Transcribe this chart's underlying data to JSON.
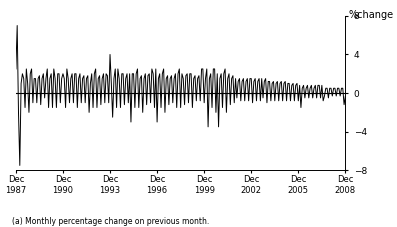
{
  "title": "",
  "ylabel": "%change",
  "ylabel_position": "right",
  "footnote": "(a) Monthly percentage change on previous month.",
  "ylim": [
    -8,
    8
  ],
  "yticks": [
    -8,
    -4,
    0,
    4,
    8
  ],
  "xtick_labels": [
    "Dec\n1987",
    "Dec\n1990",
    "Dec\n1993",
    "Dec\n1996",
    "Dec\n1999",
    "Dec\n2002",
    "Dec\n2005",
    "Dec\n2008"
  ],
  "xtick_positions": [
    0,
    36,
    72,
    108,
    144,
    180,
    216,
    252
  ],
  "line_color": "#000000",
  "line_width": 0.8,
  "background_color": "#ffffff",
  "zero_line_color": "#000000",
  "values": [
    2.5,
    7.0,
    -2.0,
    -7.5,
    1.0,
    2.0,
    1.5,
    -1.5,
    2.5,
    1.0,
    -2.0,
    2.0,
    2.5,
    -1.0,
    1.5,
    1.5,
    -1.0,
    1.5,
    1.8,
    -1.2,
    1.5,
    2.0,
    -0.5,
    1.5,
    2.5,
    -1.5,
    1.5,
    2.0,
    -1.5,
    2.5,
    1.5,
    -1.5,
    2.0,
    2.0,
    -1.0,
    1.5,
    2.0,
    1.5,
    -1.5,
    2.5,
    1.5,
    -1.0,
    1.5,
    2.0,
    -1.0,
    2.0,
    2.0,
    -1.5,
    1.5,
    2.0,
    -1.0,
    1.5,
    1.8,
    -1.0,
    1.5,
    1.8,
    -2.0,
    1.0,
    2.0,
    -1.5,
    2.0,
    2.5,
    -1.5,
    1.5,
    1.8,
    -1.2,
    1.5,
    2.0,
    -1.0,
    2.0,
    1.8,
    -1.0,
    4.0,
    1.0,
    -2.5,
    1.5,
    2.5,
    -1.5,
    2.5,
    1.5,
    -1.5,
    2.0,
    2.0,
    -1.2,
    1.5,
    2.0,
    -1.0,
    2.0,
    -3.0,
    2.0,
    2.0,
    -1.5,
    2.0,
    2.5,
    -1.5,
    1.5,
    1.8,
    -2.0,
    1.5,
    2.0,
    -1.2,
    1.8,
    2.0,
    -1.0,
    2.5,
    2.0,
    -1.5,
    2.5,
    -3.0,
    1.5,
    2.0,
    -1.5,
    2.0,
    2.5,
    -2.0,
    1.5,
    1.8,
    -1.2,
    1.5,
    1.8,
    -1.0,
    1.5,
    2.0,
    -1.5,
    2.0,
    2.5,
    -1.5,
    2.0,
    1.5,
    -1.2,
    1.8,
    2.0,
    -1.0,
    2.0,
    2.0,
    -1.5,
    1.5,
    1.8,
    -0.8,
    1.5,
    1.8,
    -0.8,
    2.5,
    2.5,
    -1.0,
    1.5,
    2.5,
    -3.5,
    1.5,
    2.0,
    -1.5,
    2.5,
    2.5,
    -2.0,
    2.0,
    -3.5,
    1.5,
    2.0,
    -1.5,
    2.0,
    2.5,
    -2.0,
    1.5,
    2.0,
    -1.2,
    1.5,
    1.8,
    -1.0,
    1.5,
    -0.5,
    1.2,
    1.5,
    -0.8,
    1.2,
    1.5,
    -0.8,
    1.2,
    1.5,
    -0.8,
    1.5,
    1.5,
    -1.0,
    1.2,
    1.5,
    -0.8,
    1.2,
    1.5,
    -0.8,
    1.5,
    -0.5,
    1.2,
    1.5,
    -1.0,
    1.2,
    1.2,
    -0.8,
    1.0,
    1.2,
    -0.8,
    1.0,
    1.2,
    -0.8,
    1.0,
    1.2,
    -0.8,
    1.0,
    1.2,
    -0.8,
    1.0,
    1.0,
    -0.8,
    0.8,
    1.0,
    -0.8,
    0.8,
    1.0,
    -0.8,
    0.8,
    -1.5,
    0.5,
    0.8,
    -0.5,
    0.5,
    0.8,
    -0.5,
    0.5,
    0.8,
    -0.5,
    0.5,
    0.8,
    -0.5,
    0.8,
    0.8,
    -0.5,
    0.8,
    -0.8,
    -0.3,
    0.5,
    0.5,
    -0.5,
    0.5,
    0.5,
    -0.3,
    0.5,
    0.5,
    -0.3,
    0.5,
    0.5,
    -0.3,
    0.5,
    0.5,
    -1.2,
    -0.3
  ]
}
